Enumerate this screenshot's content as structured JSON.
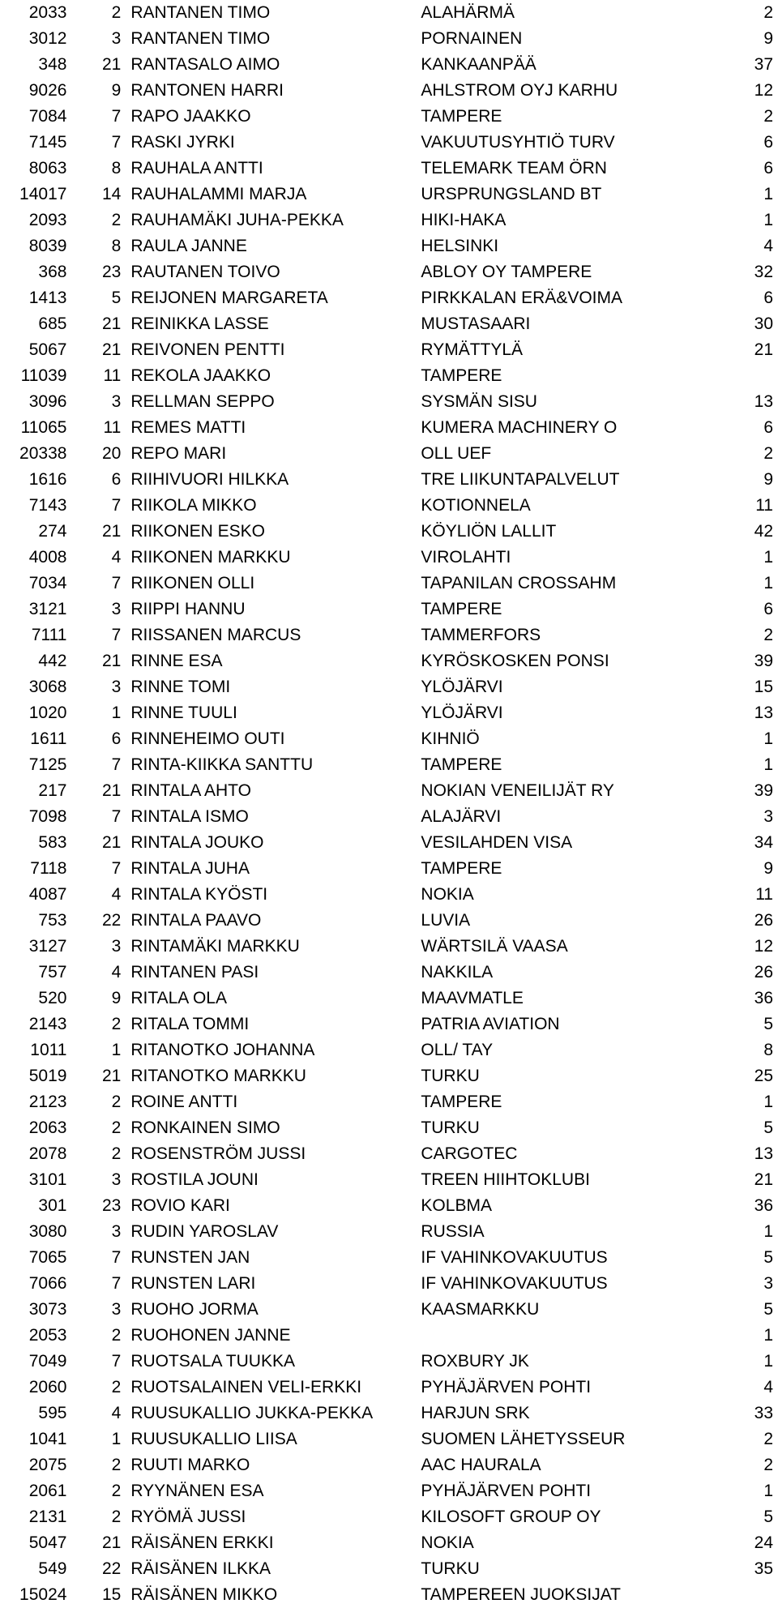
{
  "rows": [
    [
      "2033",
      "2",
      "RANTANEN TIMO",
      "ALAHÄRMÄ",
      "2"
    ],
    [
      "3012",
      "3",
      "RANTANEN TIMO",
      "PORNAINEN",
      "9"
    ],
    [
      "348",
      "21",
      "RANTASALO AIMO",
      "KANKAANPÄÄ",
      "37"
    ],
    [
      "9026",
      "9",
      "RANTONEN HARRI",
      "AHLSTROM OYJ KARHU",
      "12"
    ],
    [
      "7084",
      "7",
      "RAPO JAAKKO",
      "TAMPERE",
      "2"
    ],
    [
      "7145",
      "7",
      "RASKI JYRKI",
      "VAKUUTUSYHTIÖ TURV",
      "6"
    ],
    [
      "8063",
      "8",
      "RAUHALA ANTTI",
      "TELEMARK TEAM ÖRN",
      "6"
    ],
    [
      "14017",
      "14",
      "RAUHALAMMI MARJA",
      "URSPRUNGSLAND BT",
      "1"
    ],
    [
      "2093",
      "2",
      "RAUHAMÄKI JUHA-PEKKA",
      "HIKI-HAKA",
      "1"
    ],
    [
      "8039",
      "8",
      "RAULA JANNE",
      "HELSINKI",
      "4"
    ],
    [
      "368",
      "23",
      "RAUTANEN TOIVO",
      "ABLOY OY TAMPERE",
      "32"
    ],
    [
      "1413",
      "5",
      "REIJONEN MARGARETA",
      "PIRKKALAN ERÄ&VOIMA",
      "6"
    ],
    [
      "685",
      "21",
      "REINIKKA LASSE",
      "MUSTASAARI",
      "30"
    ],
    [
      "5067",
      "21",
      "REIVONEN PENTTI",
      "RYMÄTTYLÄ",
      "21"
    ],
    [
      "11039",
      "11",
      "REKOLA JAAKKO",
      "TAMPERE",
      ""
    ],
    [
      "3096",
      "3",
      "RELLMAN SEPPO",
      "SYSMÄN SISU",
      "13"
    ],
    [
      "11065",
      "11",
      "REMES MATTI",
      "KUMERA MACHINERY O",
      "6"
    ],
    [
      "20338",
      "20",
      "REPO MARI",
      "OLL UEF",
      "2"
    ],
    [
      "1616",
      "6",
      "RIIHIVUORI HILKKA",
      "TRE LIIKUNTAPALVELUT",
      "9"
    ],
    [
      "7143",
      "7",
      "RIIKOLA MIKKO",
      "KOTIONNELA",
      "11"
    ],
    [
      "274",
      "21",
      "RIIKONEN ESKO",
      "KÖYLIÖN LALLIT",
      "42"
    ],
    [
      "4008",
      "4",
      "RIIKONEN MARKKU",
      "VIROLAHTI",
      "1"
    ],
    [
      "7034",
      "7",
      "RIIKONEN OLLI",
      "TAPANILAN CROSSAHM",
      "1"
    ],
    [
      "3121",
      "3",
      "RIIPPI HANNU",
      "TAMPERE",
      "6"
    ],
    [
      "7111",
      "7",
      "RIISSANEN MARCUS",
      "TAMMERFORS",
      "2"
    ],
    [
      "442",
      "21",
      "RINNE ESA",
      "KYRÖSKOSKEN PONSI",
      "39"
    ],
    [
      "3068",
      "3",
      "RINNE TOMI",
      "YLÖJÄRVI",
      "15"
    ],
    [
      "1020",
      "1",
      "RINNE TUULI",
      "YLÖJÄRVI",
      "13"
    ],
    [
      "1611",
      "6",
      "RINNEHEIMO OUTI",
      "KIHNIÖ",
      "1"
    ],
    [
      "7125",
      "7",
      "RINTA-KIIKKA SANTTU",
      "TAMPERE",
      "1"
    ],
    [
      "217",
      "21",
      "RINTALA AHTO",
      "NOKIAN VENEILIJÄT RY",
      "39"
    ],
    [
      "7098",
      "7",
      "RINTALA ISMO",
      "ALAJÄRVI",
      "3"
    ],
    [
      "583",
      "21",
      "RINTALA JOUKO",
      "VESILAHDEN VISA",
      "34"
    ],
    [
      "7118",
      "7",
      "RINTALA JUHA",
      "TAMPERE",
      "9"
    ],
    [
      "4087",
      "4",
      "RINTALA KYÖSTI",
      "NOKIA",
      "11"
    ],
    [
      "753",
      "22",
      "RINTALA PAAVO",
      "LUVIA",
      "26"
    ],
    [
      "3127",
      "3",
      "RINTAMÄKI MARKKU",
      "WÄRTSILÄ VAASA",
      "12"
    ],
    [
      "757",
      "4",
      "RINTANEN PASI",
      "NAKKILA",
      "26"
    ],
    [
      "520",
      "9",
      "RITALA OLA",
      "MAAVMATLE",
      "36"
    ],
    [
      "2143",
      "2",
      "RITALA TOMMI",
      "PATRIA AVIATION",
      "5"
    ],
    [
      "1011",
      "1",
      "RITANOTKO JOHANNA",
      "OLL/ TAY",
      "8"
    ],
    [
      "5019",
      "21",
      "RITANOTKO MARKKU",
      "TURKU",
      "25"
    ],
    [
      "2123",
      "2",
      "ROINE ANTTI",
      "TAMPERE",
      "1"
    ],
    [
      "2063",
      "2",
      "RONKAINEN SIMO",
      "TURKU",
      "5"
    ],
    [
      "2078",
      "2",
      "ROSENSTRÖM JUSSI",
      "CARGOTEC",
      "13"
    ],
    [
      "3101",
      "3",
      "ROSTILA JOUNI",
      "TREEN HIIHTOKLUBI",
      "21"
    ],
    [
      "301",
      "23",
      "ROVIO KARI",
      "KOLBMA",
      "36"
    ],
    [
      "3080",
      "3",
      "RUDIN YAROSLAV",
      "RUSSIA",
      "1"
    ],
    [
      "7065",
      "7",
      "RUNSTEN JAN",
      "IF VAHINKOVAKUUTUS",
      "5"
    ],
    [
      "7066",
      "7",
      "RUNSTEN LARI",
      "IF VAHINKOVAKUUTUS",
      "3"
    ],
    [
      "3073",
      "3",
      "RUOHO JORMA",
      "KAASMARKKU",
      "5"
    ],
    [
      "2053",
      "2",
      "RUOHONEN JANNE",
      "",
      "1"
    ],
    [
      "7049",
      "7",
      "RUOTSALA TUUKKA",
      "ROXBURY JK",
      "1"
    ],
    [
      "2060",
      "2",
      "RUOTSALAINEN VELI-ERKKI",
      "PYHÄJÄRVEN POHTI",
      "4"
    ],
    [
      "595",
      "4",
      "RUUSUKALLIO JUKKA-PEKKA",
      "HARJUN SRK",
      "33"
    ],
    [
      "1041",
      "1",
      "RUUSUKALLIO LIISA",
      "SUOMEN LÄHETYSSEUR",
      "2"
    ],
    [
      "2075",
      "2",
      "RUUTI MARKO",
      "AAC HAURALA",
      "2"
    ],
    [
      "2061",
      "2",
      "RYYNÄNEN ESA",
      "PYHÄJÄRVEN POHTI",
      "1"
    ],
    [
      "2131",
      "2",
      "RYÖMÄ JUSSI",
      "KILOSOFT GROUP OY",
      "5"
    ],
    [
      "5047",
      "21",
      "RÄISÄNEN ERKKI",
      "NOKIA",
      "24"
    ],
    [
      "549",
      "22",
      "RÄISÄNEN ILKKA",
      "TURKU",
      "35"
    ],
    [
      "15024",
      "15",
      "RÄISÄNEN MIKKO",
      "TAMPEREEN JUOKSIJAT",
      ""
    ]
  ]
}
